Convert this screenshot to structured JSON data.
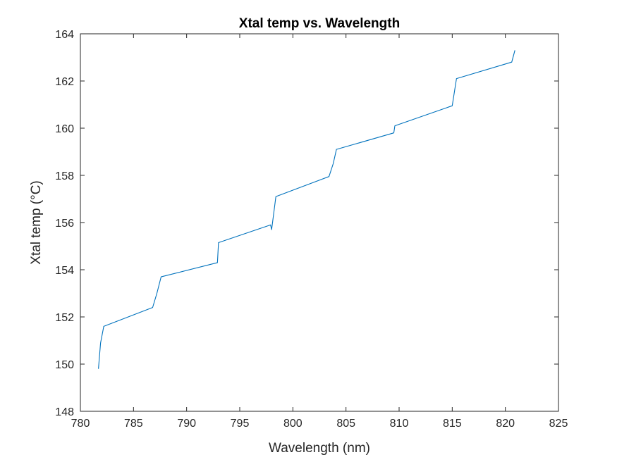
{
  "chart_data": {
    "type": "line",
    "title": "Xtal temp vs. Wavelength",
    "xlabel": "Wavelength (nm)",
    "ylabel": "Xtal temp (°C)",
    "xlim": [
      780,
      825
    ],
    "ylim": [
      148,
      164
    ],
    "xticks": [
      780,
      785,
      790,
      795,
      800,
      805,
      810,
      815,
      820,
      825
    ],
    "yticks": [
      148,
      150,
      152,
      154,
      156,
      158,
      160,
      162,
      164
    ],
    "grid": false,
    "series": [
      {
        "color": "#0072BD",
        "x": [
          781.7,
          781.9,
          782.2,
          786.8,
          787.2,
          787.6,
          792.9,
          793.0,
          797.9,
          798.0,
          798.4,
          803.4,
          803.8,
          804.1,
          809.5,
          809.6,
          815.0,
          815.4,
          820.6,
          820.9
        ],
        "y": [
          149.8,
          150.9,
          151.6,
          152.4,
          153.0,
          153.7,
          154.3,
          155.15,
          155.9,
          155.7,
          157.1,
          157.95,
          158.5,
          159.1,
          159.8,
          160.1,
          160.95,
          162.1,
          162.8,
          163.3
        ]
      }
    ]
  }
}
